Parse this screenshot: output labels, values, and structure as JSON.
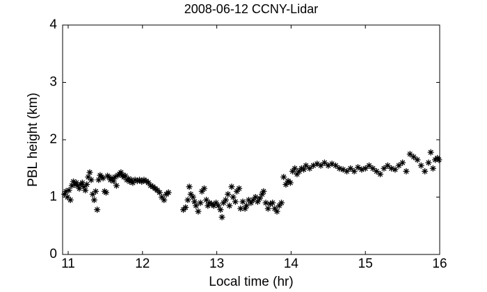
{
  "chart_data": {
    "type": "scatter",
    "title": "2008-06-12 CCNY-Lidar",
    "xlabel": "Local time (hr)",
    "ylabel": "PBL height (km)",
    "color": "#000000",
    "marker": "asterisk",
    "xlim": [
      10.925,
      16
    ],
    "ylim": [
      0,
      4
    ],
    "xticks": [
      11,
      12,
      13,
      14,
      15,
      16
    ],
    "yticks": [
      0,
      1,
      2,
      3,
      4
    ],
    "x": [
      10.95,
      10.97,
      10.99,
      11.01,
      11.03,
      11.05,
      11.07,
      11.09,
      11.11,
      11.13,
      11.15,
      11.17,
      11.19,
      11.21,
      11.23,
      11.25,
      11.27,
      11.29,
      11.31,
      11.33,
      11.35,
      11.37,
      11.39,
      11.41,
      11.43,
      11.45,
      11.47,
      11.49,
      11.51,
      11.53,
      11.55,
      11.57,
      11.59,
      11.61,
      11.63,
      11.65,
      11.67,
      11.69,
      11.71,
      11.73,
      11.75,
      11.77,
      11.79,
      11.81,
      11.83,
      11.85,
      11.87,
      11.9,
      11.93,
      11.96,
      11.99,
      12.02,
      12.05,
      12.08,
      12.11,
      12.14,
      12.17,
      12.2,
      12.23,
      12.26,
      12.29,
      12.32,
      12.35,
      12.55,
      12.58,
      12.61,
      12.63,
      12.65,
      12.68,
      12.7,
      12.72,
      12.75,
      12.78,
      12.8,
      12.83,
      12.86,
      12.88,
      12.9,
      12.93,
      12.96,
      12.99,
      13.02,
      13.05,
      13.07,
      13.09,
      13.12,
      13.15,
      13.17,
      13.2,
      13.22,
      13.25,
      13.27,
      13.3,
      13.32,
      13.35,
      13.38,
      13.4,
      13.43,
      13.46,
      13.49,
      13.52,
      13.55,
      13.58,
      13.61,
      13.63,
      13.66,
      13.69,
      13.72,
      13.75,
      13.78,
      13.81,
      13.84,
      13.87,
      13.9,
      13.93,
      13.96,
      13.99,
      14.02,
      14.05,
      14.08,
      14.11,
      14.14,
      14.17,
      14.2,
      14.25,
      14.3,
      14.35,
      14.4,
      14.45,
      14.5,
      14.55,
      14.6,
      14.65,
      14.7,
      14.75,
      14.8,
      14.85,
      14.9,
      14.95,
      15.0,
      15.05,
      15.1,
      15.15,
      15.2,
      15.25,
      15.3,
      15.35,
      15.4,
      15.45,
      15.5,
      15.55,
      15.6,
      15.65,
      15.7,
      15.75,
      15.8,
      15.85,
      15.88,
      15.91,
      15.94,
      15.97,
      15.99
    ],
    "y": [
      1.05,
      1.1,
      1.0,
      1.12,
      0.95,
      1.2,
      1.27,
      1.22,
      1.25,
      1.2,
      1.15,
      1.22,
      1.25,
      1.18,
      1.12,
      1.22,
      1.35,
      1.43,
      1.3,
      1.05,
      0.95,
      1.1,
      0.78,
      1.3,
      1.38,
      1.35,
      1.33,
      1.1,
      1.08,
      1.37,
      1.35,
      1.3,
      1.32,
      1.28,
      1.35,
      1.2,
      1.38,
      1.4,
      1.43,
      1.38,
      1.35,
      1.37,
      1.3,
      1.32,
      1.27,
      1.3,
      1.25,
      1.3,
      1.28,
      1.3,
      1.27,
      1.3,
      1.28,
      1.25,
      1.2,
      1.18,
      1.15,
      1.12,
      1.08,
      1.0,
      0.95,
      1.05,
      1.08,
      0.78,
      0.82,
      0.95,
      1.18,
      1.05,
      1.0,
      0.92,
      0.85,
      0.75,
      0.9,
      1.1,
      1.15,
      0.95,
      0.85,
      0.9,
      0.88,
      0.85,
      0.9,
      0.85,
      0.78,
      0.65,
      0.9,
      0.95,
      1.05,
      0.85,
      1.18,
      1.0,
      0.92,
      1.1,
      1.15,
      0.8,
      0.92,
      0.8,
      0.85,
      0.95,
      0.9,
      0.95,
      1.0,
      0.92,
      0.98,
      1.05,
      1.1,
      0.9,
      0.8,
      0.88,
      0.9,
      0.8,
      0.75,
      0.85,
      0.9,
      1.35,
      1.22,
      1.28,
      1.25,
      1.45,
      1.5,
      1.4,
      1.45,
      1.5,
      1.48,
      1.55,
      1.5,
      1.55,
      1.58,
      1.55,
      1.6,
      1.55,
      1.58,
      1.55,
      1.5,
      1.48,
      1.45,
      1.5,
      1.45,
      1.52,
      1.48,
      1.5,
      1.55,
      1.5,
      1.45,
      1.4,
      1.5,
      1.55,
      1.5,
      1.48,
      1.55,
      1.6,
      1.45,
      1.75,
      1.7,
      1.65,
      1.55,
      1.45,
      1.6,
      1.78,
      1.5,
      1.65,
      1.68,
      1.65
    ]
  }
}
